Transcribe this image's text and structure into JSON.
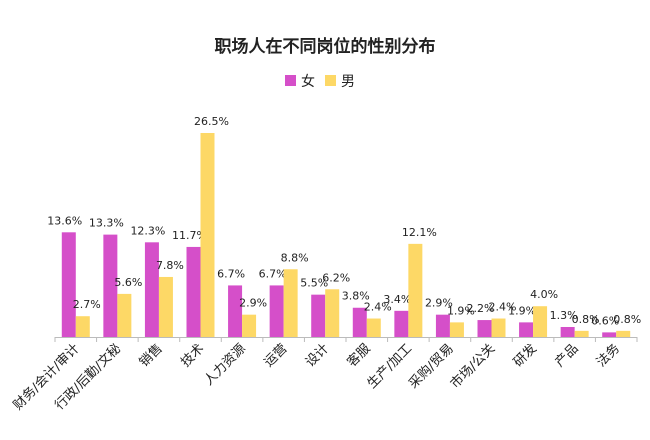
{
  "chart_data": {
    "type": "bar",
    "title": "职场人在不同岗位的性别分布",
    "xlabel": "",
    "ylabel": "",
    "ylim": [
      0,
      26.5
    ],
    "grid": false,
    "legend_placement": "top-center",
    "value_format": "percent",
    "categories": [
      "财务/会计/审计",
      "行政/后勤/文秘",
      "销售",
      "技术",
      "人力资源",
      "运营",
      "设计",
      "客服",
      "生产/加工",
      "采购/贸易",
      "市场/公关",
      "研发",
      "产品",
      "法务"
    ],
    "series": [
      {
        "name": "女",
        "color": "#d54fc9",
        "values": [
          13.6,
          13.3,
          12.3,
          11.7,
          6.7,
          6.7,
          5.5,
          3.8,
          3.4,
          2.9,
          2.2,
          1.9,
          1.3,
          0.6
        ]
      },
      {
        "name": "男",
        "color": "#fdd866",
        "values": [
          2.7,
          5.6,
          7.8,
          26.5,
          2.9,
          8.8,
          6.2,
          2.4,
          12.1,
          1.9,
          2.4,
          4.0,
          0.8,
          0.8
        ]
      }
    ]
  }
}
